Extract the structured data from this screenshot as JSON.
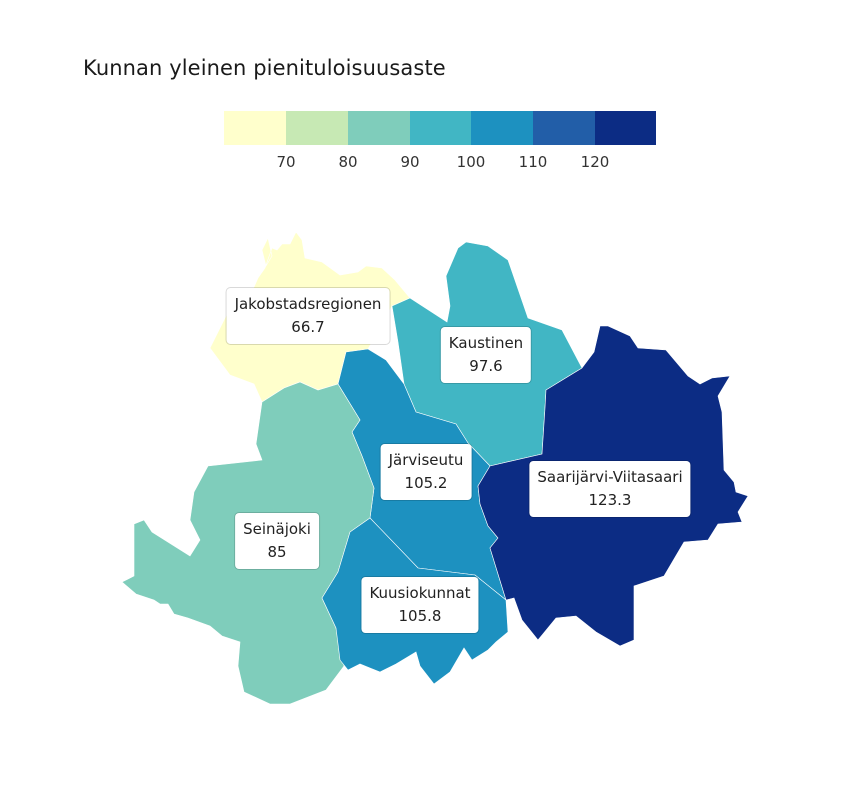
{
  "title": "Kunnan yleinen pienituloisuusaste",
  "legend": {
    "colors": [
      "#ffffcc",
      "#c7e9b4",
      "#7fcdbb",
      "#41b6c4",
      "#1d91c0",
      "#225ea8",
      "#0c2c84"
    ],
    "ticks": [
      "70",
      "80",
      "90",
      "100",
      "110",
      "120"
    ]
  },
  "regions": [
    {
      "name": "Jakobstadsregionen",
      "value": "66.7",
      "color": "#ffffcc"
    },
    {
      "name": "Kaustinen",
      "value": "97.6",
      "color": "#41b6c4"
    },
    {
      "name": "Järviseutu",
      "value": "105.2",
      "color": "#1d91c0"
    },
    {
      "name": "Saarijärvi-Viitasaari",
      "value": "123.3",
      "color": "#0c2c84"
    },
    {
      "name": "Seinäjoki",
      "value": "85",
      "color": "#7fcdbb"
    },
    {
      "name": "Kuusiokunnat",
      "value": "105.8",
      "color": "#1d91c0"
    }
  ]
}
